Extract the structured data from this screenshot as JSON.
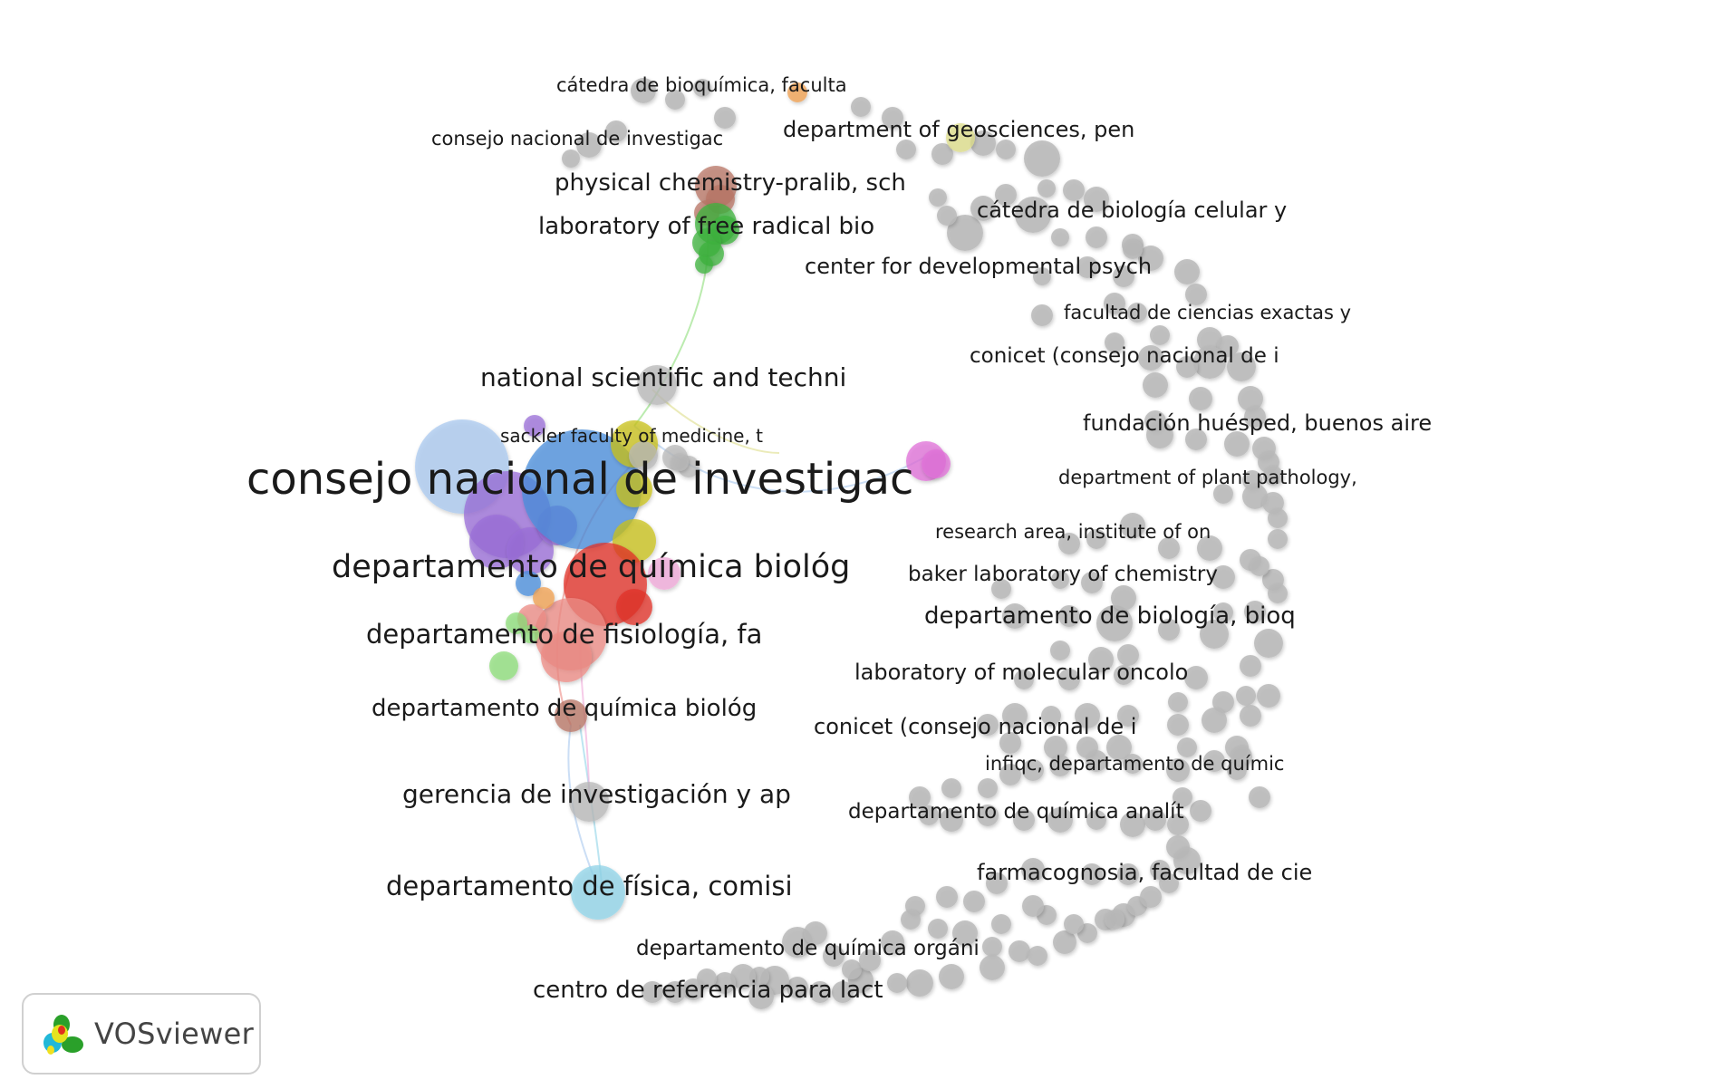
{
  "app": {
    "name": "VOSviewer"
  },
  "colors": {
    "gray": "#b8b8b8",
    "blue": "#4a8fdc",
    "lightblue": "#a9c8ef",
    "purple": "#9b6fd8",
    "red": "#e2302a",
    "salmon": "#ee8c86",
    "green": "#3fb33f",
    "lightgreen": "#8edd7a",
    "yellow": "#c9c11e",
    "paleyellow": "#dede8a",
    "brown": "#b87565",
    "orange": "#f0a050",
    "magenta": "#e070d8",
    "pink": "#f0a8d8",
    "cyan": "#90d4e8"
  },
  "labels": [
    "consejo nacional de investigac",
    "departamento de química biológ",
    "departamento de fisiología, fa",
    "departamento de química biológ",
    "national scientific and techni",
    "sackler faculty of medicine, t",
    "gerencia de investigación y ap",
    "departamento de física, comisi",
    "physical chemistry-pralib, sch",
    "laboratory of free radical bio",
    "cátedra de bioquímica, faculta",
    "consejo nacional de investigac",
    "department of geosciences, pen",
    "cátedra de biología celular y",
    "center for developmental psych",
    "facultad de ciencias exactas y",
    "conicet (consejo nacional de i",
    "fundación huésped, buenos aire",
    "department of plant pathology,",
    "research area, institute of on",
    "baker laboratory of chemistry",
    "departamento de biología, bioq",
    "laboratory of molecular oncolo",
    "conicet (consejo nacional de i",
    "infiqc, departamento de químic",
    "departamento de química analít",
    "farmacognosia, facultad de cie",
    "departamento de química orgáni",
    "centro de referencia para lact"
  ]
}
